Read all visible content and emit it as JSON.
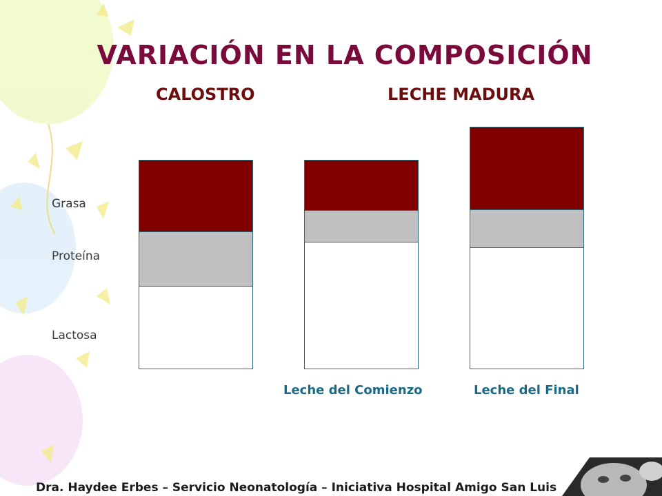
{
  "slide": {
    "title": "VARIACIÓN EN LA COMPOSICIÓN",
    "headings": {
      "left": "CALOSTRO",
      "right": "LECHE MADURA"
    },
    "row_labels": {
      "fat": "Grasa",
      "protein": "Proteína",
      "lactose": "Lactosa"
    },
    "bars": [
      {
        "label": "",
        "fat_pct": 34.2,
        "protein_pct": 26.3,
        "lactose_pct": 39.5
      },
      {
        "label": "Leche del Comienzo",
        "fat_pct": 23.7,
        "protein_pct": 15.8,
        "lactose_pct": 60.5
      },
      {
        "label": "Leche del Final",
        "fat_pct": 34.1,
        "protein_pct": 15.9,
        "lactose_pct": 50.0
      }
    ],
    "footer": "Dra. Haydee Erbes – Servicio Neonatología – Iniciativa Hospital Amigo San Luis"
  },
  "colors": {
    "title": "#7a0a3c",
    "heading": "#6b0d0d",
    "fat": "#800000",
    "protein": "#c0c0c0",
    "lactose": "#ffffff",
    "bar_label": "#1a6a86"
  }
}
